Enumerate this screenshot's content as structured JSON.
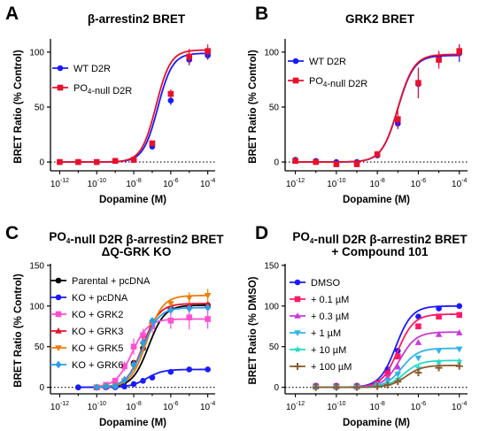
{
  "colors": {
    "wt": "#1a1aff",
    "po4": "#e8112d",
    "parental": "#000000",
    "ko_pcdna": "#1a1aff",
    "grk2": "#ff4fd2",
    "grk3": "#e8112d",
    "grk5": "#f07d0a",
    "grk6": "#2a9ee8",
    "dmso": "#1a1aff",
    "c01": "#ff1a66",
    "c03": "#c73ad9",
    "c1": "#2fb4e8",
    "c10": "#25d9c4",
    "c100": "#8c5a2e"
  },
  "chart_data": [
    {
      "panel": "A",
      "type": "scatter",
      "title": "β-arrestin2 BRET",
      "xlabel": "Dopamine (M)",
      "ylabel": "BRET Ratio (% Control)",
      "xscale": "log",
      "xlim": [
        -12.5,
        -3.6
      ],
      "ylim": [
        -8,
        112
      ],
      "xticks": [
        -12,
        -10,
        -8,
        -6,
        -4
      ],
      "yticks": [
        0,
        50,
        100
      ],
      "legend": "top-left",
      "baseline": "dotted at 0",
      "series": [
        {
          "name": "WT D2R",
          "marker": "circle",
          "colorKey": "wt",
          "logEC50": -6.7,
          "top": 99,
          "bottom": 0,
          "hill": 1.1,
          "x": [
            -12,
            -11,
            -10,
            -9,
            -8,
            -7,
            -6,
            -5,
            -4
          ],
          "y": [
            0,
            0,
            0,
            1,
            2,
            14,
            56,
            93,
            97
          ],
          "err": [
            0,
            0,
            0,
            0,
            1,
            2,
            4,
            5,
            4
          ]
        },
        {
          "name": "PO4-null D2R",
          "marker": "square",
          "colorKey": "po4",
          "logEC50": -6.8,
          "top": 102,
          "bottom": 0,
          "hill": 1.1,
          "x": [
            -12,
            -11,
            -10,
            -9,
            -8,
            -7,
            -6,
            -5,
            -4
          ],
          "y": [
            0,
            0,
            0,
            1,
            2,
            17,
            62,
            96,
            101
          ],
          "err": [
            0,
            0,
            1,
            1,
            1,
            2,
            4,
            7,
            6
          ]
        }
      ]
    },
    {
      "panel": "B",
      "type": "scatter",
      "title": "GRK2 BRET",
      "xlabel": "Dopamine (M)",
      "ylabel": "BRET Ratio (% Control)",
      "xscale": "log",
      "xlim": [
        -12.5,
        -3.6
      ],
      "ylim": [
        -8,
        112
      ],
      "xticks": [
        -12,
        -10,
        -8,
        -6,
        -4
      ],
      "yticks": [
        0,
        50,
        100
      ],
      "legend": "top-left",
      "baseline": "dotted at 0",
      "series": [
        {
          "name": "WT D2R",
          "marker": "circle",
          "colorKey": "wt",
          "logEC50": -7.0,
          "top": 97,
          "bottom": 0,
          "hill": 1.1,
          "x": [
            -12,
            -11,
            -10,
            -9,
            -8,
            -7,
            -6,
            -5,
            -4
          ],
          "y": [
            2,
            1,
            0,
            0,
            6,
            35,
            71,
            95,
            99
          ],
          "err": [
            1,
            1,
            1,
            1,
            2,
            5,
            13,
            6,
            8
          ]
        },
        {
          "name": "PO4-null D2R",
          "marker": "square",
          "colorKey": "po4",
          "logEC50": -7.0,
          "top": 98,
          "bottom": 0,
          "hill": 1.1,
          "x": [
            -12,
            -11,
            -10,
            -9,
            -8,
            -7,
            -6,
            -5,
            -4
          ],
          "y": [
            1,
            0,
            -2,
            -2,
            7,
            39,
            72,
            93,
            101
          ],
          "err": [
            1,
            1,
            1,
            1,
            3,
            8,
            14,
            8,
            6
          ]
        }
      ]
    },
    {
      "panel": "C",
      "type": "scatter",
      "title": "PO4-null D2R β-arrestin2 BRET",
      "subtitle": "ΔQ-GRK KO",
      "xlabel": "Dopamine (M)",
      "ylabel": "BRET Ratio (% Control)",
      "xscale": "log",
      "xlim": [
        -12.5,
        -3.6
      ],
      "ylim": [
        -8,
        152
      ],
      "xticks": [
        -12,
        -10,
        -8,
        -6,
        -4
      ],
      "yticks": [
        0,
        50,
        100,
        150
      ],
      "legend": "top-left",
      "baseline": "dotted at 0",
      "series": [
        {
          "name": "Parental + pcDNA",
          "marker": "circle",
          "colorKey": "parental",
          "logEC50": -7.2,
          "top": 101,
          "bottom": 0,
          "hill": 1.0,
          "x": [
            -11,
            -10,
            -9.5,
            -9,
            -8.5,
            -8,
            -7.5,
            -7,
            -6,
            -5,
            -4
          ],
          "y": [
            0,
            0,
            1,
            1,
            7,
            30,
            48,
            78,
            97,
            99,
            101
          ],
          "err": [
            0,
            0,
            1,
            1,
            2,
            3,
            4,
            4,
            3,
            3,
            3
          ]
        },
        {
          "name": "KO + pcDNA",
          "marker": "circle",
          "colorKey": "ko_pcdna",
          "logEC50": -7.3,
          "top": 22,
          "bottom": 0,
          "hill": 1.0,
          "x": [
            -11,
            -10,
            -9.5,
            -9,
            -8.5,
            -8,
            -7.5,
            -7,
            -6,
            -5,
            -4
          ],
          "y": [
            0,
            0,
            0,
            0,
            1,
            4,
            8,
            12,
            19,
            22,
            22
          ],
          "err": [
            0,
            0,
            0,
            0,
            0,
            1,
            1,
            1,
            1,
            1,
            1
          ]
        },
        {
          "name": "KO + GRK2",
          "marker": "square",
          "colorKey": "grk2",
          "logEC50": -8.1,
          "top": 84,
          "bottom": 0,
          "hill": 1.0,
          "x": [
            -10,
            -9.5,
            -9,
            -8.5,
            -8,
            -7.5,
            -7,
            -6,
            -5,
            -4
          ],
          "y": [
            0,
            3,
            8,
            26,
            50,
            64,
            75,
            82,
            86,
            84
          ],
          "err": [
            1,
            2,
            3,
            6,
            10,
            8,
            8,
            10,
            15,
            12
          ]
        },
        {
          "name": "KO + GRK3",
          "marker": "triangle-up",
          "colorKey": "grk3",
          "logEC50": -7.5,
          "top": 103,
          "bottom": 0,
          "hill": 1.0,
          "x": [
            -10,
            -9.5,
            -9,
            -8.5,
            -8,
            -7.5,
            -7,
            -6,
            -5,
            -4
          ],
          "y": [
            0,
            1,
            2,
            10,
            30,
            57,
            82,
            98,
            101,
            102
          ],
          "err": [
            0,
            1,
            1,
            2,
            3,
            4,
            4,
            4,
            4,
            4
          ]
        },
        {
          "name": "KO + GRK5",
          "marker": "triangle-down",
          "colorKey": "grk5",
          "logEC50": -7.3,
          "top": 113,
          "bottom": 0,
          "hill": 1.0,
          "x": [
            -10,
            -9.5,
            -9,
            -8.5,
            -8,
            -7.5,
            -7,
            -6,
            -5,
            -4
          ],
          "y": [
            0,
            1,
            2,
            8,
            25,
            52,
            78,
            103,
            110,
            113
          ],
          "err": [
            0,
            1,
            1,
            2,
            3,
            4,
            5,
            6,
            7,
            8
          ]
        },
        {
          "name": "KO + GRK6",
          "marker": "diamond",
          "colorKey": "grk6",
          "logEC50": -7.5,
          "top": 98,
          "bottom": 0,
          "hill": 1.0,
          "x": [
            -10,
            -9.5,
            -9,
            -8.5,
            -8,
            -7.5,
            -7,
            -6,
            -5,
            -4
          ],
          "y": [
            0,
            1,
            1,
            9,
            28,
            55,
            82,
            95,
            97,
            98
          ],
          "err": [
            0,
            1,
            1,
            2,
            3,
            4,
            4,
            4,
            4,
            4
          ]
        }
      ]
    },
    {
      "panel": "D",
      "type": "scatter",
      "title": "PO4-null D2R β-arrestin2 BRET",
      "subtitle": "+ Compound 101",
      "xlabel": "Dopamine (M)",
      "ylabel": "BRET Ratio (% DMSO)",
      "xscale": "log",
      "xlim": [
        -12.5,
        -3.6
      ],
      "ylim": [
        -8,
        152
      ],
      "xticks": [
        -12,
        -10,
        -8,
        -6,
        -4
      ],
      "yticks": [
        0,
        50,
        100,
        150
      ],
      "legend": "top-left",
      "baseline": "dotted at 0",
      "series": [
        {
          "name": "DMSO",
          "marker": "circle",
          "colorKey": "dmso",
          "logEC50": -7.1,
          "top": 100,
          "bottom": 0,
          "hill": 1.1,
          "x": [
            -11,
            -10,
            -9,
            -8,
            -7.5,
            -7,
            -6,
            -5,
            -4
          ],
          "y": [
            2,
            2,
            2,
            6,
            22,
            45,
            87,
            97,
            100
          ],
          "err": [
            1,
            1,
            1,
            1,
            2,
            3,
            3,
            3,
            3
          ]
        },
        {
          "name": "+ 0.1 µM",
          "marker": "square",
          "colorKey": "c01",
          "logEC50": -7.0,
          "top": 90,
          "bottom": 0,
          "hill": 1.1,
          "x": [
            -11,
            -10,
            -9,
            -8,
            -7.5,
            -7,
            -6,
            -5,
            -4
          ],
          "y": [
            1,
            1,
            1,
            5,
            17,
            38,
            75,
            87,
            89
          ],
          "err": [
            1,
            1,
            1,
            1,
            2,
            3,
            3,
            3,
            3
          ]
        },
        {
          "name": "+ 0.3 µM",
          "marker": "triangle-up",
          "colorKey": "c03",
          "logEC50": -6.9,
          "top": 68,
          "bottom": 0,
          "hill": 1.1,
          "x": [
            -11,
            -10,
            -9,
            -8,
            -7.5,
            -7,
            -6,
            -5,
            -4
          ],
          "y": [
            1,
            1,
            1,
            4,
            12,
            25,
            55,
            65,
            67
          ],
          "err": [
            1,
            1,
            1,
            1,
            2,
            2,
            3,
            3,
            3
          ]
        },
        {
          "name": "+ 1 µM",
          "marker": "triangle-down",
          "colorKey": "c1",
          "logEC50": -6.8,
          "top": 48,
          "bottom": 0,
          "hill": 1.1,
          "x": [
            -11,
            -10,
            -9,
            -8,
            -7.5,
            -7,
            -6,
            -5,
            -4
          ],
          "y": [
            0,
            0,
            0,
            3,
            8,
            16,
            36,
            45,
            47
          ],
          "err": [
            0,
            0,
            0,
            1,
            1,
            2,
            2,
            2,
            2
          ]
        },
        {
          "name": "+ 10 µM",
          "marker": "star",
          "colorKey": "c10",
          "logEC50": -6.7,
          "top": 33,
          "bottom": 0,
          "hill": 1.1,
          "x": [
            -11,
            -10,
            -9,
            -8,
            -7.5,
            -7,
            -6,
            -5,
            -4
          ],
          "y": [
            0,
            0,
            0,
            2,
            5,
            10,
            24,
            31,
            32
          ],
          "err": [
            0,
            0,
            0,
            1,
            1,
            1,
            2,
            2,
            2
          ]
        },
        {
          "name": "+ 100 µM",
          "marker": "plus",
          "colorKey": "c100",
          "logEC50": -6.6,
          "top": 27,
          "bottom": 0,
          "hill": 1.1,
          "x": [
            -11,
            -10,
            -9,
            -8,
            -7.5,
            -7,
            -6,
            -5,
            -4
          ],
          "y": [
            0,
            0,
            0,
            1,
            3,
            7,
            18,
            24,
            26
          ],
          "err": [
            0,
            0,
            0,
            1,
            1,
            1,
            1,
            1,
            1
          ]
        }
      ]
    }
  ]
}
